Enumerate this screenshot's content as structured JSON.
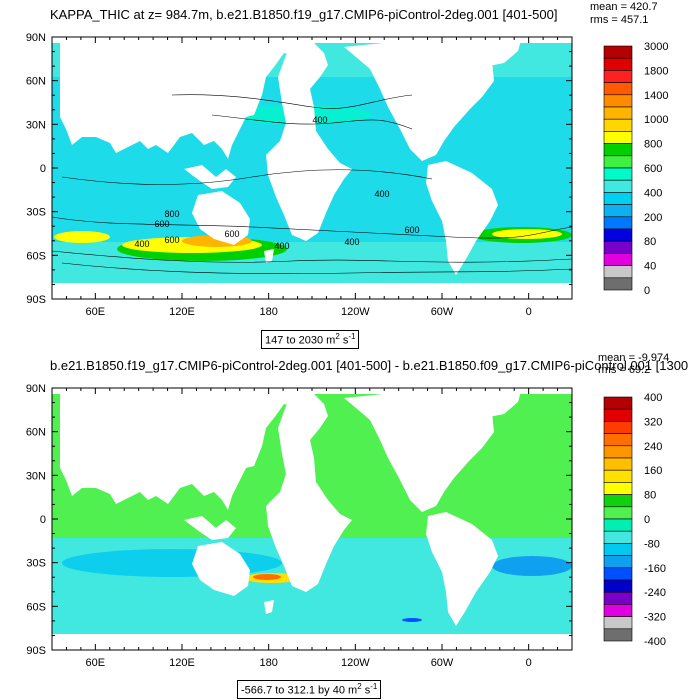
{
  "chart_data": [
    {
      "type": "heatmap",
      "title": "KAPPA_THIC at z= 984.7m, b.e21.B1850.f19_g17.CMIP6-piControl-2deg.001 [401-500]",
      "stats": {
        "mean": "mean = 420.7",
        "rms": "rms = 457.1"
      },
      "range_label": "147 to 2030 m",
      "range_unit_sup": "2",
      "range_unit_end": " s",
      "range_unit_sup2": "-1",
      "x_ticks": [
        "60E",
        "120E",
        "180",
        "120W",
        "60W",
        "0"
      ],
      "y_ticks": [
        "90N",
        "60N",
        "30N",
        "0",
        "30S",
        "60S",
        "90S"
      ],
      "colorbar": {
        "labels": [
          "3000",
          "1800",
          "1400",
          "1000",
          "800",
          "600",
          "400",
          "200",
          "80",
          "40",
          "0"
        ],
        "colors": [
          "#b40000",
          "#e00000",
          "#ff2020",
          "#ff5a00",
          "#ff8c00",
          "#ffb400",
          "#ffd700",
          "#ffff00",
          "#00d000",
          "#40f040",
          "#00fac8",
          "#40e8e0",
          "#00d0f0",
          "#10b0f0",
          "#0078ff",
          "#0000e0",
          "#7800c8",
          "#e000e0",
          "#c8c8c8",
          "#6e6e6e"
        ]
      },
      "contour_labels": [
        "400",
        "400",
        "400",
        "600",
        "600",
        "400",
        "600",
        "400",
        "600",
        "800"
      ]
    },
    {
      "type": "heatmap",
      "title": "b.e21.B1850.f19_g17.CMIP6-piControl-2deg.001 [401-500] - b.e21.B1850.f09_g17.CMIP6-piControl.001 [1300",
      "stats": {
        "mean": "mean = -9.974",
        "rms": "rms = 69.2"
      },
      "range_label": "-566.7 to 312.1 by 40 m",
      "range_unit_sup": "2",
      "range_unit_end": " s",
      "range_unit_sup2": "-1",
      "x_ticks": [
        "60E",
        "120E",
        "180",
        "120W",
        "60W",
        "0"
      ],
      "y_ticks": [
        "90N",
        "60N",
        "30N",
        "0",
        "30S",
        "60S",
        "90S"
      ],
      "colorbar": {
        "labels": [
          "400",
          "320",
          "240",
          "160",
          "80",
          "0",
          "-80",
          "-160",
          "-240",
          "-320",
          "-400"
        ],
        "colors": [
          "#b40000",
          "#e00000",
          "#ff3c00",
          "#ff6e00",
          "#ff9600",
          "#ffbe00",
          "#ffe000",
          "#ffff00",
          "#10d010",
          "#50f050",
          "#00f0b4",
          "#40e8e0",
          "#00c8f0",
          "#10a0f0",
          "#0050ff",
          "#0000c8",
          "#7800c8",
          "#e000e0",
          "#c8c8c8",
          "#6e6e6e"
        ]
      }
    }
  ]
}
